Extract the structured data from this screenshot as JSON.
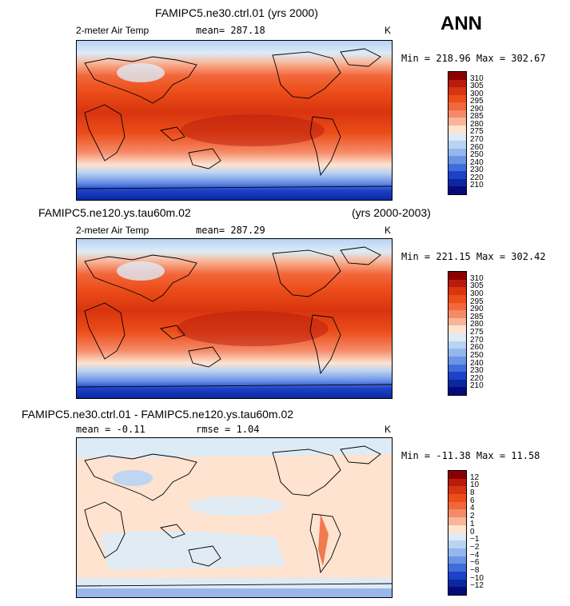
{
  "season": "ANN",
  "panels": [
    {
      "case_title": "FAMIPC5.ne30.ctrl.01 (yrs 2000)",
      "case_title_right": "",
      "variable": "2-meter Air Temp",
      "stat": "mean= 287.18",
      "stat2": "",
      "units": "K",
      "minmax": "Min = 218.96 Max = 302.67",
      "colorbar": {
        "labels": [
          "310",
          "305",
          "300",
          "295",
          "290",
          "285",
          "280",
          "275",
          "270",
          "260",
          "250",
          "240",
          "230",
          "220",
          "210"
        ],
        "colors": [
          "#8b0000",
          "#b71c0c",
          "#d8340f",
          "#ec4d19",
          "#f2673b",
          "#f58a68",
          "#f9b597",
          "#fde3d0",
          "#ddebf7",
          "#b9d3f2",
          "#93b7ee",
          "#6c94e6",
          "#3f6edc",
          "#1b42c8",
          "#0c28a0",
          "#050c7a"
        ]
      }
    },
    {
      "case_title": "FAMIPC5.ne120.ys.tau60m.02",
      "case_title_right": "(yrs 2000-2003)",
      "variable": "2-meter Air Temp",
      "stat": "mean= 287.29",
      "stat2": "",
      "units": "K",
      "minmax": "Min = 221.15 Max = 302.42",
      "colorbar": {
        "labels": [
          "310",
          "305",
          "300",
          "295",
          "290",
          "285",
          "280",
          "275",
          "270",
          "260",
          "250",
          "240",
          "230",
          "220",
          "210"
        ],
        "colors": [
          "#8b0000",
          "#b71c0c",
          "#d8340f",
          "#ec4d19",
          "#f2673b",
          "#f58a68",
          "#f9b597",
          "#fde3d0",
          "#ddebf7",
          "#b9d3f2",
          "#93b7ee",
          "#6c94e6",
          "#3f6edc",
          "#1b42c8",
          "#0c28a0",
          "#050c7a"
        ]
      }
    },
    {
      "case_title": "FAMIPC5.ne30.ctrl.01 - FAMIPC5.ne120.ys.tau60m.02",
      "case_title_right": "",
      "variable": "",
      "stat": "mean =   -0.11",
      "stat2": "rmse =    1.04",
      "units": "K",
      "minmax": "Min = -11.38 Max =  11.58",
      "colorbar": {
        "labels": [
          "12",
          "10",
          "8",
          "6",
          "4",
          "2",
          "1",
          "0",
          "−1",
          "−2",
          "−4",
          "−6",
          "−8",
          "−10",
          "−12"
        ],
        "colors": [
          "#8b0000",
          "#b71c0c",
          "#d8340f",
          "#ec4d19",
          "#f2673b",
          "#f58a68",
          "#f9b597",
          "#fde3d0",
          "#ddebf7",
          "#b9d3f2",
          "#93b7ee",
          "#6c94e6",
          "#3f6edc",
          "#1b42c8",
          "#0c28a0",
          "#050c7a"
        ]
      }
    }
  ]
}
